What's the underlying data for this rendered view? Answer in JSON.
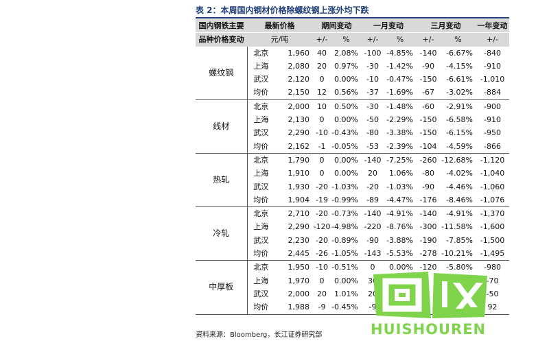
{
  "title": "表 2：本周国内钢材价格除螺纹钢上涨外均下跌",
  "header": {
    "row1": [
      "国内钢铁主要",
      "最新价格",
      "期间变动",
      "一月变动",
      "三月变动",
      "一年变动"
    ],
    "row2": [
      "品种价格变动",
      "元/吨",
      "+/-",
      "%",
      "+/-",
      "%",
      "+/-",
      "%",
      "+/-",
      "%"
    ]
  },
  "groups": [
    {
      "name": "螺纹钢",
      "rows": [
        [
          "北京",
          "1,960",
          "40",
          "2.08%",
          "-100",
          "-4.85%",
          "-140",
          "-6.67%",
          "-840",
          "-30.00%"
        ],
        [
          "上海",
          "2,080",
          "20",
          "0.97%",
          "-30",
          "-1.42%",
          "-90",
          "-4.15%",
          "-910",
          "-30.43%"
        ],
        [
          "武汉",
          "2,120",
          "0",
          "0.00%",
          "-10",
          "-0.47%",
          "-150",
          "-6.61%",
          "-1,010",
          "-32.27%"
        ],
        [
          "均价",
          "2,150",
          "12",
          "0.56%",
          "-37",
          "-1.69%",
          "-67",
          "-3.02%",
          "-884",
          "-29.14%"
        ]
      ]
    },
    {
      "name": "线材",
      "rows": [
        [
          "北京",
          "2,000",
          "10",
          "0.50%",
          "-30",
          "-1.48%",
          "-60",
          "-2.91%",
          "-900",
          "-31.03%"
        ],
        [
          "上海",
          "2,130",
          "0",
          "0.00%",
          "-50",
          "-2.29%",
          "-150",
          "-6.58%",
          "-910",
          "-29.93%"
        ],
        [
          "武汉",
          "2,290",
          "-10",
          "-0.43%",
          "-80",
          "-3.38%",
          "-150",
          "-6.15%",
          "-950",
          "-29.32%"
        ],
        [
          "均价",
          "2,162",
          "-1",
          "-0.05%",
          "-53",
          "-2.39%",
          "-104",
          "-4.59%",
          "-866",
          "-28.60%"
        ]
      ]
    },
    {
      "name": "热轧",
      "rows": [
        [
          "北京",
          "1,790",
          "0",
          "0.00%",
          "-140",
          "-7.25%",
          "-260",
          "-12.68%",
          "-1,120",
          "-38.49%"
        ],
        [
          "上海",
          "1,910",
          "0",
          "0.00%",
          "20",
          "1.06%",
          "-80",
          "-4.02%",
          "-1,040",
          "-35.25%"
        ],
        [
          "武汉",
          "1,930",
          "-20",
          "-1.03%",
          "-20",
          "-1.03%",
          "-90",
          "-4.46%",
          "-1,060",
          "-35.45%"
        ],
        [
          "均价",
          "1,904",
          "-19",
          "-0.99%",
          "-89",
          "-4.47%",
          "-176",
          "-8.46%",
          "-1,076",
          "-36.11%"
        ]
      ]
    },
    {
      "name": "冷轧",
      "rows": [
        [
          "北京",
          "2,710",
          "-20",
          "-0.73%",
          "-140",
          "-4.91%",
          "-140",
          "-4.91%",
          "-1,370",
          "-33.58%"
        ],
        [
          "上海",
          "2,290",
          "-120",
          "-4.98%",
          "-220",
          "-8.76%",
          "-300",
          "-11.58%",
          "-1,600",
          "-41.13%"
        ],
        [
          "武汉",
          "2,230",
          "-20",
          "-0.89%",
          "-90",
          "-3.88%",
          "-190",
          "-7.85%",
          "-1,500",
          "-40.21%"
        ],
        [
          "均价",
          "2,445",
          "-26",
          "-1.05%",
          "-143",
          "-5.53%",
          "-278",
          "-10.21%",
          "-1,495",
          "-37.94%"
        ]
      ]
    },
    {
      "name": "中厚板",
      "rows": [
        [
          "北京",
          "1,950",
          "-10",
          "-0.51%",
          "0",
          "0.00%",
          "-120",
          "-5.80%",
          "-980",
          "-33.45%"
        ],
        [
          "上海",
          "1,970",
          "0",
          "0.00%",
          "30",
          "1.",
          "",
          "",
          "-70",
          "-32"
        ],
        [
          "武汉",
          "2,000",
          "20",
          "1.01%",
          "20",
          "1.",
          "",
          "",
          "-50",
          "-32"
        ],
        [
          "均价",
          "1,988",
          "-9",
          "-0.45%",
          "-9",
          "-0.",
          "",
          "",
          "92",
          "-33.29%"
        ]
      ]
    }
  ],
  "source": "资料来源：Bloomberg，长江证券研究部",
  "watermark": {
    "logo_text": "回收",
    "brand": "HUISHOUREN",
    "color": "#7fd44b"
  }
}
